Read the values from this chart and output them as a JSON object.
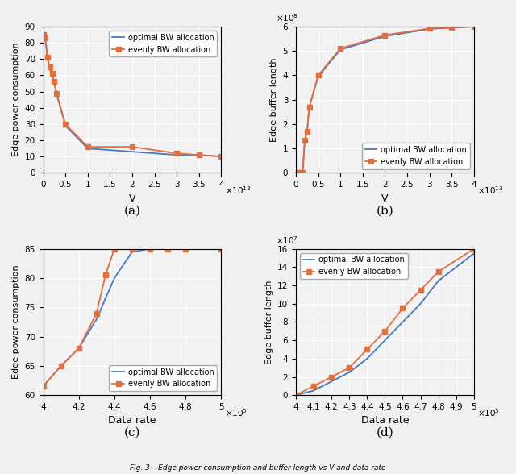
{
  "subplot_a": {
    "xlabel": "V",
    "ylabel": "Edge power consumption",
    "xlim": [
      0,
      40000000000000.0
    ],
    "ylim": [
      0,
      90
    ],
    "xticks": [
      0,
      5000000000000.0,
      10000000000000.0,
      15000000000000.0,
      20000000000000.0,
      25000000000000.0,
      30000000000000.0,
      35000000000000.0,
      40000000000000.0
    ],
    "yticks": [
      0,
      10,
      20,
      30,
      40,
      50,
      60,
      70,
      80,
      90
    ],
    "opt_x": [
      0,
      500000000000.0,
      1000000000000.0,
      1500000000000.0,
      2000000000000.0,
      2500000000000.0,
      3000000000000.0,
      5000000000000.0,
      10000000000000.0,
      20000000000000.0,
      30000000000000.0,
      35000000000000.0,
      40000000000000.0
    ],
    "opt_y": [
      85,
      82,
      70,
      64,
      59,
      55,
      49,
      29,
      15,
      13,
      11,
      11,
      10
    ],
    "even_x": [
      0,
      500000000000.0,
      1000000000000.0,
      1500000000000.0,
      2000000000000.0,
      2500000000000.0,
      3000000000000.0,
      5000000000000.0,
      10000000000000.0,
      20000000000000.0,
      30000000000000.0,
      35000000000000.0,
      40000000000000.0
    ],
    "even_y": [
      85,
      83,
      71,
      65,
      61,
      56,
      49,
      30,
      16,
      16,
      12,
      11,
      10
    ],
    "xscale": 10000000000000.0,
    "yscale": 1,
    "xexp": "13",
    "yexp": null,
    "legend_loc": "upper right"
  },
  "subplot_b": {
    "xlabel": "V",
    "ylabel": "Edge buffer length",
    "xlim": [
      0,
      40000000000000.0
    ],
    "ylim": [
      0,
      600000000.0
    ],
    "xticks": [
      0,
      5000000000000.0,
      10000000000000.0,
      15000000000000.0,
      20000000000000.0,
      25000000000000.0,
      30000000000000.0,
      35000000000000.0,
      40000000000000.0
    ],
    "yticks": [
      0,
      100000000.0,
      200000000.0,
      300000000.0,
      400000000.0,
      500000000.0,
      600000000.0
    ],
    "opt_x": [
      0,
      500000000000.0,
      1000000000000.0,
      1500000000000.0,
      2000000000000.0,
      2500000000000.0,
      3000000000000.0,
      5000000000000.0,
      10000000000000.0,
      20000000000000.0,
      30000000000000.0,
      35000000000000.0,
      40000000000000.0
    ],
    "opt_y": [
      0,
      1300000,
      1600000,
      1900000,
      135000000,
      170000000,
      270000000,
      395000000,
      505000000,
      560000000,
      590000000,
      595000000,
      600000000
    ],
    "even_x": [
      0,
      500000000000.0,
      1000000000000.0,
      1500000000000.0,
      2000000000000.0,
      2500000000000.0,
      3000000000000.0,
      5000000000000.0,
      10000000000000.0,
      20000000000000.0,
      30000000000000.0,
      35000000000000.0,
      40000000000000.0
    ],
    "even_y": [
      0,
      1300000,
      1600000,
      1900000,
      135000000,
      170000000,
      270000000,
      400000000,
      510000000,
      565000000,
      592000000,
      596000000,
      600000000
    ],
    "xscale": 10000000000000.0,
    "yscale": 100000000.0,
    "xexp": "13",
    "yexp": "8",
    "legend_loc": "lower right"
  },
  "subplot_c": {
    "xlabel": "Data rate",
    "ylabel": "Edge power consumption",
    "xlim": [
      400000.0,
      500000.0
    ],
    "ylim": [
      60,
      85
    ],
    "xticks": [
      400000.0,
      420000.0,
      440000.0,
      460000.0,
      480000.0,
      500000.0
    ],
    "yticks": [
      60,
      65,
      70,
      75,
      80,
      85
    ],
    "opt_x": [
      400000.0,
      410000.0,
      420000.0,
      430000.0,
      440000.0,
      450000.0,
      460000.0,
      470000.0,
      480000.0,
      500000.0
    ],
    "opt_y": [
      61.5,
      65,
      68,
      73,
      80,
      84.5,
      85,
      85,
      85,
      85
    ],
    "even_x": [
      400000.0,
      410000.0,
      420000.0,
      430000.0,
      435000.0,
      440000.0,
      450000.0,
      460000.0,
      470000.0,
      480000.0,
      500000.0
    ],
    "even_y": [
      61.5,
      65,
      68,
      74,
      80.5,
      85,
      85,
      85,
      85,
      85,
      85
    ],
    "xscale": 100000.0,
    "yscale": 1,
    "xexp": "5",
    "yexp": null,
    "legend_loc": "lower right"
  },
  "subplot_d": {
    "xlabel": "Data rate",
    "ylabel": "Edge buffer length",
    "xlim": [
      400000.0,
      500000.0
    ],
    "ylim": [
      0,
      160000000.0
    ],
    "xticks": [
      400000.0,
      410000.0,
      420000.0,
      430000.0,
      440000.0,
      450000.0,
      460000.0,
      470000.0,
      480000.0,
      490000.0,
      500000.0
    ],
    "yticks": [
      0,
      20000000.0,
      40000000.0,
      60000000.0,
      80000000.0,
      100000000.0,
      120000000.0,
      140000000.0,
      160000000.0
    ],
    "opt_x": [
      400000.0,
      410000.0,
      420000.0,
      430000.0,
      440000.0,
      450000.0,
      460000.0,
      470000.0,
      480000.0,
      500000.0
    ],
    "opt_y": [
      0,
      5000000,
      15000000,
      25000000,
      40000000,
      60000000,
      80000000,
      100000000,
      125000000,
      155000000
    ],
    "even_x": [
      400000.0,
      410000.0,
      420000.0,
      430000.0,
      440000.0,
      450000.0,
      460000.0,
      470000.0,
      480000.0,
      500000.0
    ],
    "even_y": [
      0,
      10000000,
      20000000,
      30000000,
      50000000,
      70000000,
      95000000,
      115000000,
      135000000,
      160000000
    ],
    "xscale": 100000.0,
    "yscale": 10000000.0,
    "xexp": "5",
    "yexp": "7",
    "legend_loc": "upper left"
  },
  "bg_color": "#f2f2f2",
  "grid_color": "#ffffff",
  "opt_label": "optimal BW allocation",
  "even_label": "evenly BW allocation",
  "opt_color": "#4878be",
  "even_color": "#e07040"
}
